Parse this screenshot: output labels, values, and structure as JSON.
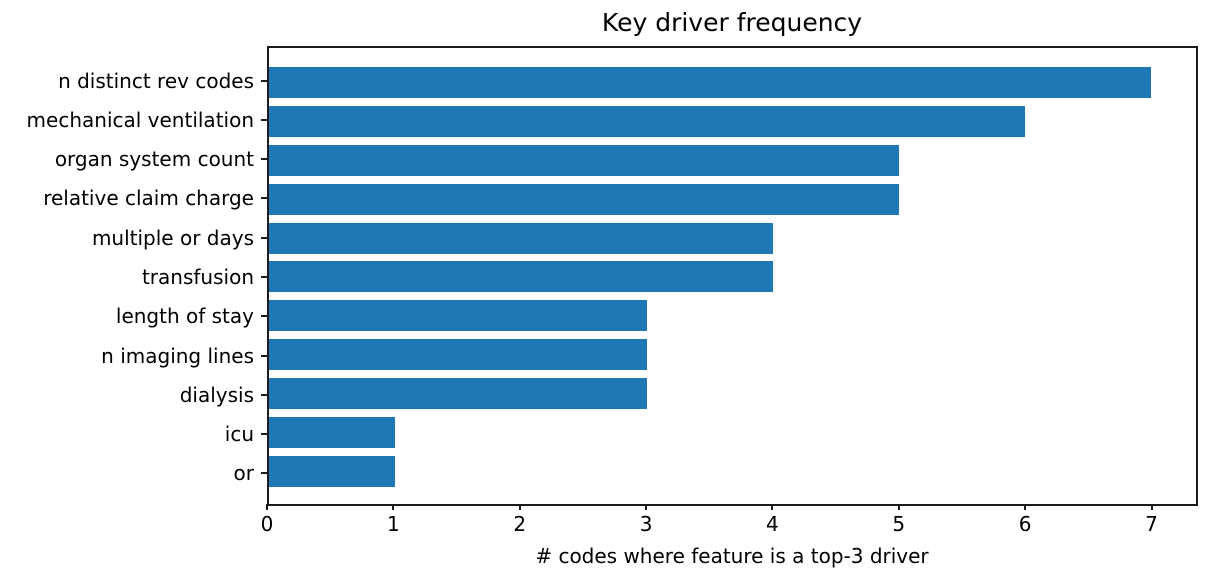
{
  "chart_data": {
    "type": "bar",
    "orientation": "horizontal",
    "title": "Key driver frequency",
    "xlabel": "# codes where feature is a top-3 driver",
    "ylabel": "",
    "categories": [
      "n distinct rev codes",
      "mechanical ventilation",
      "organ system count",
      "relative claim charge",
      "multiple or days",
      "transfusion",
      "length of stay",
      "n imaging lines",
      "dialysis",
      "icu",
      "or"
    ],
    "values": [
      7,
      6,
      5,
      5,
      4,
      4,
      3,
      3,
      3,
      1,
      1
    ],
    "x_ticks": [
      0,
      1,
      2,
      3,
      4,
      5,
      6,
      7
    ],
    "xlim": [
      0,
      7.36
    ],
    "grid": false,
    "legend_position": "none",
    "bar_color": "#1f77b4"
  },
  "colors": {
    "bar": "#1f77b4",
    "axis": "#1c1c1c",
    "text": "#000000",
    "background": "#ffffff"
  }
}
